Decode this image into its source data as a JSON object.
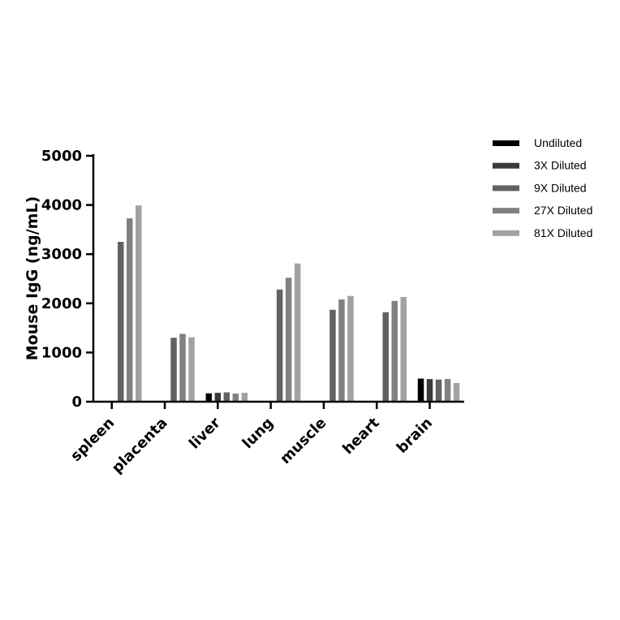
{
  "chart_data": {
    "type": "bar",
    "title": "",
    "xlabel": "",
    "ylabel": "Mouse IgG (ng/mL)",
    "ylim": [
      0,
      5000
    ],
    "yticks": [
      0,
      1000,
      2000,
      3000,
      4000,
      5000
    ],
    "ytick_labels": [
      "0",
      "1000",
      "2000",
      "3000",
      "4000",
      "5000"
    ],
    "categories": [
      "spleen",
      "placenta",
      "liver",
      "lung",
      "muscle",
      "heart",
      "brain"
    ],
    "legend_position": "top-right",
    "grid": false,
    "series": [
      {
        "name": "Undiluted",
        "color": "#000000",
        "values": [
          null,
          null,
          170,
          null,
          null,
          null,
          470
        ]
      },
      {
        "name": "3X Diluted",
        "color": "#3a3a3a",
        "values": [
          null,
          null,
          180,
          null,
          null,
          null,
          460
        ]
      },
      {
        "name": "9X Diluted",
        "color": "#626262",
        "values": [
          3250,
          1300,
          190,
          2280,
          1870,
          1820,
          450
        ]
      },
      {
        "name": "27X Diluted",
        "color": "#818181",
        "values": [
          3730,
          1380,
          165,
          2520,
          2080,
          2050,
          460
        ]
      },
      {
        "name": "81X Diluted",
        "color": "#a2a2a2",
        "values": [
          3990,
          1310,
          180,
          2810,
          2150,
          2130,
          380
        ]
      }
    ]
  }
}
